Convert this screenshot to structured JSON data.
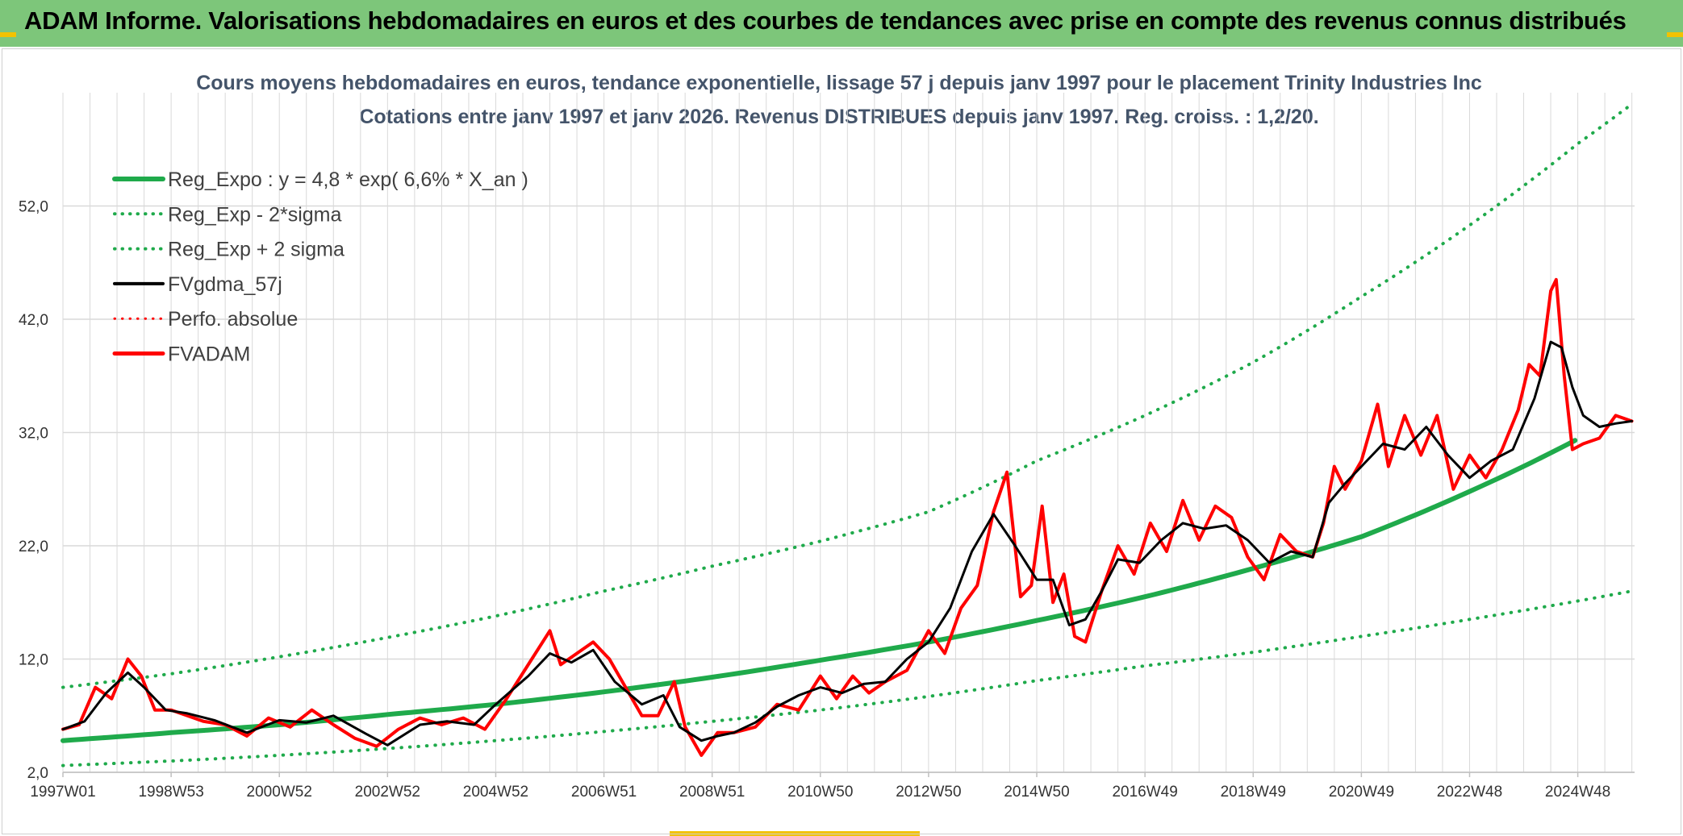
{
  "banner": {
    "title": "ADAM Informe. Valorisations hebdomadaires en euros et des courbes de tendances avec prise en compte des revenus connus distribués"
  },
  "colors": {
    "banner": "#7dc67a",
    "trend": "#1faa4b",
    "price": "#ff0000",
    "smooth": "#000000",
    "grid": "#d9d9d9"
  },
  "chart_data": {
    "type": "line",
    "title": "Cours moyens hebdomadaires en euros, tendance exponentielle, lissage 57 j depuis janv 1997 pour le placement Trinity Industries Inc",
    "subtitle": "Cotations entre janv 1997 et janv 2026. Revenus DISTRIBUES depuis janv 1997. Reg. croiss. : 1,2/20.",
    "xlabel": "",
    "ylabel": "",
    "x_range": [
      1997.0,
      2026.05
    ],
    "ylim": [
      2.0,
      62.0
    ],
    "y_ticks": [
      "2,0",
      "12,0",
      "22,0",
      "32,0",
      "42,0",
      "52,0"
    ],
    "y_tick_values": [
      2,
      12,
      22,
      32,
      42,
      52
    ],
    "x_ticks": [
      "1997W01",
      "1998W53",
      "2000W52",
      "2002W52",
      "2004W52",
      "2006W51",
      "2008W51",
      "2010W50",
      "2012W50",
      "2014W50",
      "2016W49",
      "2018W49",
      "2020W49",
      "2022W48",
      "2024W48"
    ],
    "x_tick_years": [
      1997.0,
      1999.0,
      2001.0,
      2003.0,
      2005.0,
      2007.0,
      2009.0,
      2011.0,
      2013.0,
      2015.0,
      2017.0,
      2019.0,
      2021.0,
      2023.0,
      2025.0
    ],
    "legend": [
      {
        "key": "reg_expo",
        "label": "Reg_Expo : y = 4,8 * exp( 6,6% *  X_an )",
        "color": "#1faa4b",
        "style": "solid",
        "width": 6
      },
      {
        "key": "reg_minus",
        "label": "Reg_Exp - 2*sigma",
        "color": "#1faa4b",
        "style": "dotted",
        "width": 4
      },
      {
        "key": "reg_plus",
        "label": "Reg_Exp + 2 sigma",
        "color": "#1faa4b",
        "style": "dotted",
        "width": 4
      },
      {
        "key": "fvgdma",
        "label": "FVgdma_57j",
        "color": "#000000",
        "style": "solid",
        "width": 4
      },
      {
        "key": "perfo",
        "label": "Perfo. absolue",
        "color": "#ff0000",
        "style": "dotted",
        "width": 3
      },
      {
        "key": "fvadam",
        "label": "FVADAM",
        "color": "#ff0000",
        "style": "solid",
        "width": 5
      }
    ],
    "series": [
      {
        "name": "Reg_Expo",
        "x": [
          1997.0,
          1999.0,
          2001.0,
          2003.0,
          2005.0,
          2007.0,
          2009.0,
          2011.0,
          2013.0,
          2015.0,
          2017.0,
          2019.0,
          2021.0,
          2023.0,
          2024.95
        ],
        "values": [
          4.8,
          5.5,
          6.2,
          7.1,
          8.0,
          9.1,
          10.4,
          11.9,
          13.5,
          15.4,
          17.5,
          20.0,
          22.8,
          26.8,
          31.3
        ]
      },
      {
        "name": "Reg_Exp - 2*sigma",
        "x": [
          1997.0,
          1999.0,
          2001.0,
          2003.0,
          2005.0,
          2007.0,
          2009.0,
          2011.0,
          2013.0,
          2015.0,
          2017.0,
          2019.0,
          2021.0,
          2023.0,
          2026.0
        ],
        "values": [
          2.6,
          3.0,
          3.5,
          4.1,
          4.8,
          5.6,
          6.5,
          7.5,
          8.7,
          10.1,
          11.4,
          12.6,
          14.0,
          15.5,
          18.0
        ]
      },
      {
        "name": "Reg_Exp + 2 sigma",
        "x": [
          1997.0,
          1999.0,
          2001.0,
          2003.0,
          2005.0,
          2007.0,
          2009.0,
          2011.0,
          2013.0,
          2015.0,
          2017.0,
          2019.0,
          2021.0,
          2023.0,
          2025.0,
          2026.0
        ],
        "values": [
          9.5,
          10.7,
          12.2,
          13.9,
          15.8,
          18.0,
          20.2,
          22.4,
          25.0,
          29.5,
          33.5,
          38.2,
          44.0,
          50.3,
          57.5,
          61.0
        ]
      },
      {
        "name": "FVgdma_57j",
        "x": [
          1997.0,
          1997.4,
          1997.8,
          1998.2,
          1998.5,
          1998.9,
          1999.3,
          1999.8,
          2000.4,
          2001.0,
          2001.5,
          2002.0,
          2002.6,
          2003.0,
          2003.6,
          2004.1,
          2004.6,
          2005.0,
          2005.6,
          2006.0,
          2006.4,
          2006.8,
          2007.2,
          2007.7,
          2008.1,
          2008.4,
          2008.8,
          2009.1,
          2009.4,
          2009.8,
          2010.2,
          2010.6,
          2011.0,
          2011.4,
          2011.8,
          2012.2,
          2012.6,
          2013.0,
          2013.4,
          2013.8,
          2014.2,
          2014.6,
          2015.0,
          2015.3,
          2015.6,
          2015.9,
          2016.2,
          2016.5,
          2016.9,
          2017.3,
          2017.7,
          2018.1,
          2018.5,
          2018.9,
          2019.3,
          2019.7,
          2020.1,
          2020.4,
          2020.7,
          2021.0,
          2021.4,
          2021.8,
          2022.2,
          2022.6,
          2023.0,
          2023.4,
          2023.8,
          2024.2,
          2024.5,
          2024.7,
          2024.9,
          2025.1,
          2025.4,
          2025.7,
          2026.0
        ],
        "values": [
          5.8,
          6.5,
          9.0,
          10.8,
          9.5,
          7.5,
          7.2,
          6.6,
          5.5,
          6.6,
          6.4,
          7.0,
          5.4,
          4.4,
          6.2,
          6.5,
          6.2,
          8.0,
          10.5,
          12.5,
          11.7,
          12.8,
          10.0,
          8.0,
          8.8,
          6.0,
          4.8,
          5.2,
          5.5,
          6.4,
          7.8,
          8.8,
          9.5,
          9.0,
          9.8,
          10.0,
          12.0,
          13.5,
          16.5,
          21.5,
          24.8,
          22.0,
          19.0,
          19.0,
          15.0,
          15.5,
          18.0,
          20.8,
          20.5,
          22.5,
          24.0,
          23.5,
          23.8,
          22.5,
          20.5,
          21.5,
          21.0,
          25.8,
          27.5,
          29.0,
          31.0,
          30.5,
          32.5,
          30.0,
          28.0,
          29.5,
          30.5,
          35.0,
          40.0,
          39.5,
          36.0,
          33.5,
          32.5,
          32.8,
          33.0
        ]
      },
      {
        "name": "FVADAM",
        "x": [
          1997.0,
          1997.3,
          1997.6,
          1997.9,
          1998.2,
          1998.45,
          1998.7,
          1999.0,
          1999.3,
          1999.6,
          2000.0,
          2000.4,
          2000.8,
          2001.2,
          2001.6,
          2002.0,
          2002.4,
          2002.8,
          2003.2,
          2003.6,
          2004.0,
          2004.4,
          2004.8,
          2005.2,
          2005.6,
          2006.0,
          2006.2,
          2006.5,
          2006.8,
          2007.1,
          2007.4,
          2007.7,
          2008.0,
          2008.3,
          2008.5,
          2008.8,
          2009.1,
          2009.4,
          2009.8,
          2010.2,
          2010.6,
          2011.0,
          2011.3,
          2011.6,
          2011.9,
          2012.2,
          2012.6,
          2013.0,
          2013.3,
          2013.6,
          2013.9,
          2014.2,
          2014.45,
          2014.7,
          2014.9,
          2015.1,
          2015.3,
          2015.5,
          2015.7,
          2015.9,
          2016.2,
          2016.5,
          2016.8,
          2017.1,
          2017.4,
          2017.7,
          2018.0,
          2018.3,
          2018.6,
          2018.9,
          2019.2,
          2019.5,
          2019.8,
          2020.1,
          2020.3,
          2020.5,
          2020.7,
          2021.0,
          2021.3,
          2021.5,
          2021.8,
          2022.1,
          2022.4,
          2022.7,
          2023.0,
          2023.3,
          2023.6,
          2023.9,
          2024.1,
          2024.3,
          2024.5,
          2024.6,
          2024.75,
          2024.9,
          2025.1,
          2025.4,
          2025.7,
          2026.0
        ],
        "values": [
          5.8,
          6.2,
          9.5,
          8.5,
          12.0,
          10.5,
          7.5,
          7.5,
          7.0,
          6.5,
          6.2,
          5.2,
          6.8,
          6.0,
          7.5,
          6.2,
          5.0,
          4.3,
          5.8,
          6.8,
          6.2,
          6.8,
          5.8,
          8.5,
          11.5,
          14.5,
          11.5,
          12.5,
          13.5,
          12.0,
          9.5,
          7.0,
          7.0,
          10.0,
          6.0,
          3.5,
          5.5,
          5.5,
          6.0,
          8.0,
          7.5,
          10.5,
          8.5,
          10.5,
          9.0,
          10.0,
          11.0,
          14.5,
          12.5,
          16.5,
          18.5,
          25.0,
          28.5,
          17.5,
          18.5,
          25.5,
          17.0,
          19.5,
          14.0,
          13.5,
          18.0,
          22.0,
          19.5,
          24.0,
          21.5,
          26.0,
          22.5,
          25.5,
          24.5,
          21.0,
          19.0,
          23.0,
          21.5,
          21.0,
          24.0,
          29.0,
          27.0,
          29.5,
          34.5,
          29.0,
          33.5,
          30.0,
          33.5,
          27.0,
          30.0,
          28.0,
          30.5,
          34.0,
          38.0,
          37.0,
          44.5,
          45.5,
          37.0,
          30.5,
          31.0,
          31.5,
          33.5,
          33.0
        ]
      },
      {
        "name": "Perfo. absolue",
        "x": [
          1997.0,
          2026.0
        ],
        "values": [
          5.8,
          33.0
        ]
      }
    ]
  }
}
